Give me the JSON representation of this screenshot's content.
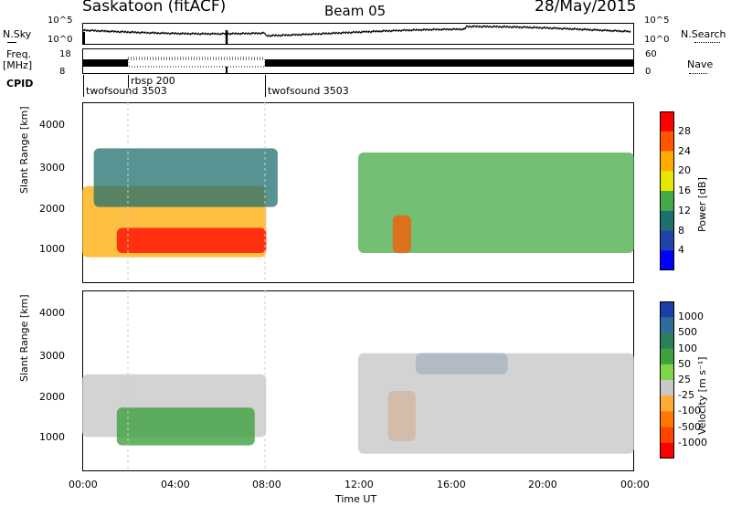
{
  "header": {
    "station": "Saskatoon (fitACF)",
    "beam": "Beam 05",
    "date": "28/May/2015"
  },
  "status_panels": {
    "nsky_label": "N.Sky",
    "nsky_ticks": [
      "10^5",
      "10^0"
    ],
    "nsearch_label": "N.Search",
    "nsearch_ticks": [
      "10^5",
      "10^0"
    ],
    "freq_label_1": "Freq.",
    "freq_label_2": "[MHz]",
    "freq_ticks": [
      "18",
      "8"
    ],
    "nave_label": "Nave",
    "nave_ticks": [
      "60",
      "0"
    ],
    "cpid_label": "CPID",
    "cpid_segments": [
      "twofsound 3503",
      "rbsp 200",
      "twofsound 3503"
    ]
  },
  "colorbars": {
    "power": {
      "label": "Power [dB]",
      "ticks": [
        "28",
        "24",
        "20",
        "16",
        "12",
        "8",
        "4"
      ],
      "colors": [
        "#ff0000",
        "#ff5500",
        "#ffaa00",
        "#e6e600",
        "#44aa44",
        "#1f6f6f",
        "#2244aa",
        "#0000ff"
      ]
    },
    "velocity": {
      "label": "Velocity [m s⁻¹]",
      "ticks": [
        "1000",
        "500",
        "100",
        "50",
        "25",
        "-25",
        "-100",
        "-500",
        "-1000"
      ],
      "colors": [
        "#1a3fa8",
        "#2f6b9c",
        "#2e7d5b",
        "#3fa03f",
        "#7fd44a",
        "#c8c8c8",
        "#ffaa33",
        "#ff7700",
        "#ff4400",
        "#ff0000"
      ]
    }
  },
  "axes": {
    "ylabel": "Slant Range [km]",
    "yticks": [
      "4000",
      "3000",
      "2000",
      "1000"
    ],
    "xticks": [
      "00:00",
      "04:00",
      "08:00",
      "12:00",
      "16:00",
      "20:00",
      "00:00"
    ],
    "xlabel": "Time UT"
  },
  "chart_data": [
    {
      "type": "heatmap",
      "title": "",
      "xlabel": "",
      "ylabel": "Slant Range [km]",
      "xlim": [
        "00:00",
        "24:00"
      ],
      "ylim": [
        180,
        4500
      ],
      "zlabel": "Power [dB]",
      "zlim": [
        0,
        30
      ],
      "regions": [
        {
          "t_start": 0.0,
          "t_end": 8.0,
          "range_min": 800,
          "range_max": 2500,
          "power": 20
        },
        {
          "t_start": 1.5,
          "t_end": 8.0,
          "range_min": 900,
          "range_max": 1500,
          "power": 28
        },
        {
          "t_start": 0.5,
          "t_end": 8.5,
          "range_min": 2000,
          "range_max": 3400,
          "power": 10
        },
        {
          "t_start": 12.0,
          "t_end": 24.0,
          "range_min": 900,
          "range_max": 3300,
          "power": 12
        },
        {
          "t_start": 13.5,
          "t_end": 14.3,
          "range_min": 900,
          "range_max": 1800,
          "power": 24
        }
      ]
    },
    {
      "type": "heatmap",
      "title": "",
      "xlabel": "Time UT",
      "ylabel": "Slant Range [km]",
      "xlim": [
        "00:00",
        "24:00"
      ],
      "ylim": [
        180,
        4500
      ],
      "zlabel": "Velocity [m s⁻¹]",
      "zlim": [
        -1000,
        1000
      ],
      "regions": [
        {
          "t_start": 0.0,
          "t_end": 8.0,
          "range_min": 1000,
          "range_max": 2500,
          "velocity": 0
        },
        {
          "t_start": 1.5,
          "t_end": 7.5,
          "range_min": 800,
          "range_max": 1700,
          "velocity": 75
        },
        {
          "t_start": 13.3,
          "t_end": 14.5,
          "range_min": 900,
          "range_max": 2100,
          "velocity": -300
        },
        {
          "t_start": 14.5,
          "t_end": 18.5,
          "range_min": 2500,
          "range_max": 3000,
          "velocity": 300
        },
        {
          "t_start": 12.0,
          "t_end": 24.0,
          "range_min": 600,
          "range_max": 3000,
          "velocity": 0
        }
      ]
    }
  ]
}
